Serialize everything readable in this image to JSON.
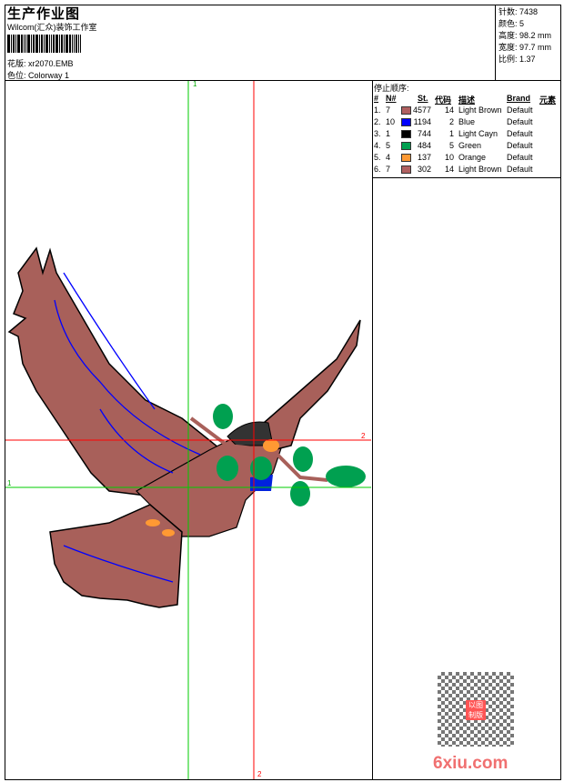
{
  "header": {
    "title": "生产作业图",
    "company": "Wilcom(汇众)装饰工作室",
    "design_label": "花版:",
    "design_value": "xr2070.EMB",
    "colorway_label": "色位:",
    "colorway_value": "Colorway 1"
  },
  "stats": [
    {
      "label": "针数:",
      "value": "7438"
    },
    {
      "label": "颜色:",
      "value": "5"
    },
    {
      "label": "高度:",
      "value": "98.2 mm"
    },
    {
      "label": "宽度:",
      "value": "97.7 mm"
    },
    {
      "label": "比例:",
      "value": "1.37"
    }
  ],
  "stop_sequence": {
    "title": "停止顺序:",
    "headers": [
      "#",
      "N#",
      "St.",
      "代码",
      "描述",
      "Brand",
      "元素"
    ],
    "rows": [
      {
        "n": "1.",
        "needle": "7",
        "color": "#b06060",
        "stitches": "4577",
        "code": "14",
        "desc": "Light Brown",
        "brand": "Default"
      },
      {
        "n": "2.",
        "needle": "10",
        "color": "#0000ff",
        "stitches": "1194",
        "code": "2",
        "desc": "Blue",
        "brand": "Default"
      },
      {
        "n": "3.",
        "needle": "1",
        "color": "#000000",
        "stitches": "744",
        "code": "1",
        "desc": "Light Cayn",
        "brand": "Default"
      },
      {
        "n": "4.",
        "needle": "5",
        "color": "#00a050",
        "stitches": "484",
        "code": "5",
        "desc": "Green",
        "brand": "Default"
      },
      {
        "n": "5.",
        "needle": "4",
        "color": "#ff9933",
        "stitches": "137",
        "code": "10",
        "desc": "Orange",
        "brand": "Default"
      },
      {
        "n": "6.",
        "needle": "7",
        "color": "#b06060",
        "stitches": "302",
        "code": "14",
        "desc": "Light Brown",
        "brand": "Default"
      }
    ]
  },
  "guides": {
    "v1": "1",
    "v2": "2",
    "h1": "1",
    "h2": "2"
  },
  "watermark": {
    "text": "6xiu.com",
    "seal": "以图制版"
  }
}
